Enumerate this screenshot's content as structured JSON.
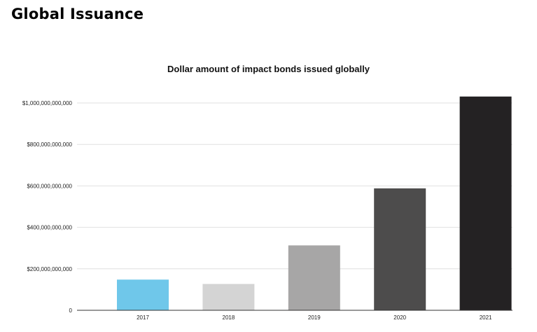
{
  "header": {
    "title": "Global Issuance"
  },
  "chart_data": {
    "type": "bar",
    "title": "Dollar amount of impact bonds issued globally",
    "xlabel": "",
    "ylabel": "",
    "categories": [
      "2017",
      "2018",
      "2019",
      "2020",
      "2021"
    ],
    "values": [
      148000000000,
      127000000000,
      313000000000,
      588000000000,
      1031000000000
    ],
    "colors": [
      "#6fc7ea",
      "#d4d4d4",
      "#a7a6a6",
      "#4d4c4c",
      "#242223"
    ],
    "ylim": [
      0,
      1000000000000
    ],
    "yticks": [
      0,
      200000000000,
      400000000000,
      600000000000,
      800000000000,
      1000000000000
    ],
    "ytick_labels": [
      "0",
      "$200,000,000,000",
      "$400,000,000,000",
      "$600,000,000,000",
      "$800,000,000,000",
      "$1,000,000,000,000"
    ],
    "grid": true,
    "legend": "none"
  }
}
